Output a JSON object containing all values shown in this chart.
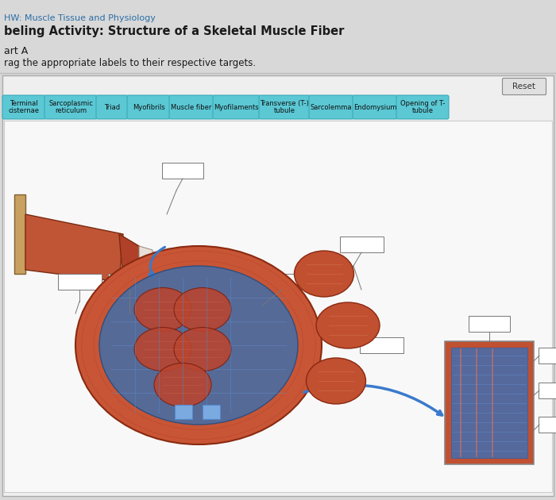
{
  "bg_color": "#d8d8d8",
  "title1": "HW: Muscle Tissue and Physiology",
  "title2": "beling Activity: Structure of a Skeletal Muscle Fiber",
  "part_label": "art A",
  "instruction": "rag the appropriate labels to their respective targets.",
  "labels": [
    "Terminal\ncisternae",
    "Sarcoplasmic\nreticulum",
    "Triad",
    "Myofibrils",
    "Muscle fiber",
    "Myofilaments",
    "Transverse (T-)\ntubule",
    "Sarcolemma",
    "Endomysium",
    "Opening of T-\ntubule"
  ],
  "label_color": "#5bc8d4",
  "label_edge_color": "#3aabb8",
  "label_text_color": "#111111",
  "reset_btn": "Reset",
  "panel_bg": "#efefef",
  "diagram_bg": "#f8f8f8",
  "title1_color": "#2a6ea6",
  "title2_color": "#1a1a1a",
  "box_fill": "#ffffff",
  "box_edge": "#777777"
}
